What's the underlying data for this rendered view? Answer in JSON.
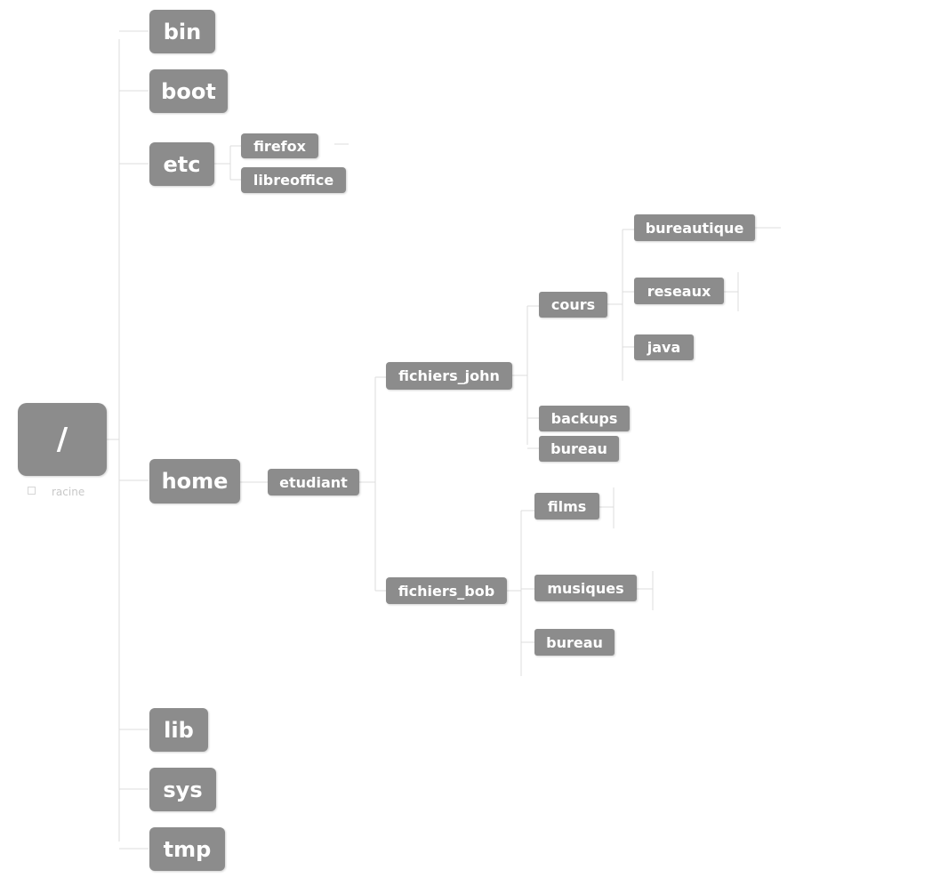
{
  "root": {
    "label": "/",
    "caption": "racine"
  },
  "level1": {
    "bin": "bin",
    "boot": "boot",
    "etc": "etc",
    "home": "home",
    "lib": "lib",
    "sys": "sys",
    "tmp": "tmp"
  },
  "etc_children": {
    "firefox": "firefox",
    "libreoffice": "libreoffice"
  },
  "home_children": {
    "etudiant": "etudiant"
  },
  "etudiant_children": {
    "fichiers_john": "fichiers_john",
    "fichiers_bob": "fichiers_bob"
  },
  "john_children": {
    "cours": "cours",
    "backups": "backups",
    "bureau": "bureau"
  },
  "cours_children": {
    "bureautique": "bureautique",
    "reseaux": "reseaux",
    "java": "java"
  },
  "bob_children": {
    "films": "films",
    "musiques": "musiques",
    "bureau": "bureau"
  },
  "colors": {
    "node": "#8c8c8c",
    "text": "#ffffff",
    "connector": "#dcdcdc"
  }
}
